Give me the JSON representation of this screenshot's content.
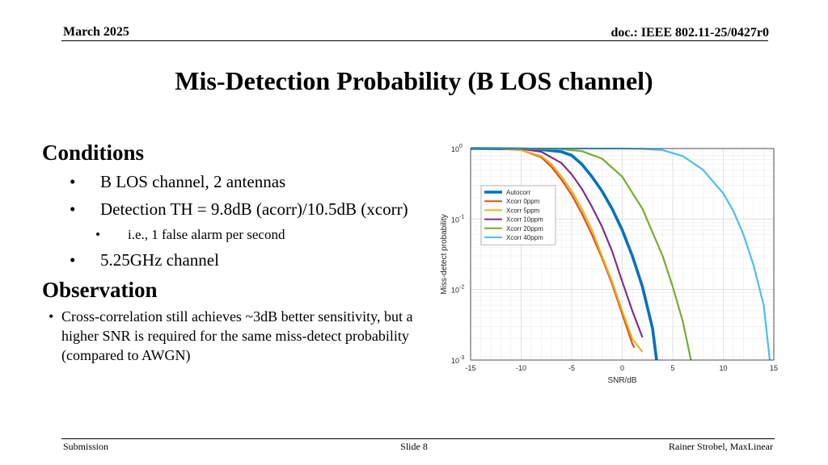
{
  "header": {
    "date": "March 2025",
    "doc": "doc.: IEEE 802.11-25/0427r0"
  },
  "title": "Mis-Detection Probability (B LOS channel)",
  "conditions": {
    "heading": "Conditions",
    "items": [
      {
        "text": "B LOS channel, 2 antennas",
        "sub": false
      },
      {
        "text": "Detection TH = 9.8dB (acorr)/10.5dB (xcorr)",
        "sub": false
      },
      {
        "text": "i.e., 1 false alarm per second",
        "sub": true
      },
      {
        "text": "5.25GHz channel",
        "sub": false
      }
    ]
  },
  "observation": {
    "heading": "Observation",
    "items": [
      "Cross-correlation still achieves ~3dB better sensitivity, but a higher SNR is required for the same miss-detect probability (compared to AWGN)"
    ]
  },
  "footer": {
    "left": "Submission",
    "center": "Slide 8",
    "right": "Rainer Strobel, MaxLinear"
  },
  "chart_data": {
    "type": "line",
    "xlabel": "SNR/dB",
    "ylabel": "Miss-detect probability",
    "xlim": [
      -15,
      15
    ],
    "ylim": [
      0.001,
      1
    ],
    "yscale": "log",
    "xticks": [
      "-15",
      "-10",
      "-5",
      "0",
      "5",
      "10",
      "15"
    ],
    "yticks": [
      {
        "value": 1,
        "base": "10",
        "exp": "0"
      },
      {
        "value": 0.1,
        "base": "10",
        "exp": "-1"
      },
      {
        "value": 0.01,
        "base": "10",
        "exp": "-2"
      },
      {
        "value": 0.001,
        "base": "10",
        "exp": "-3"
      }
    ],
    "grid": true,
    "legend_position": "upper-left",
    "series": [
      {
        "name": "Autocorr",
        "color": "#0072BD",
        "thick": true,
        "x": [
          -15,
          -10,
          -8,
          -6,
          -5,
          -4,
          -3,
          -2,
          -1,
          0,
          1,
          2,
          3,
          3.4
        ],
        "y": [
          1,
          0.99,
          0.97,
          0.9,
          0.8,
          0.6,
          0.4,
          0.25,
          0.14,
          0.07,
          0.03,
          0.011,
          0.0028,
          0.001
        ]
      },
      {
        "name": "Xcorr 0ppm",
        "color": "#D95319",
        "thick": false,
        "x": [
          -15,
          -12,
          -10,
          -8,
          -7,
          -6,
          -5,
          -4,
          -3,
          -2,
          -1,
          0,
          1,
          1.2
        ],
        "y": [
          1,
          0.99,
          0.95,
          0.75,
          0.55,
          0.36,
          0.22,
          0.12,
          0.06,
          0.028,
          0.012,
          0.0045,
          0.0017,
          0.0015
        ]
      },
      {
        "name": "Xcorr 5ppm",
        "color": "#EDB120",
        "thick": false,
        "x": [
          -15,
          -12,
          -10,
          -8,
          -7,
          -6,
          -5,
          -4,
          -3,
          -2,
          -1,
          0,
          1,
          2
        ],
        "y": [
          1,
          0.99,
          0.95,
          0.78,
          0.6,
          0.4,
          0.25,
          0.14,
          0.07,
          0.03,
          0.013,
          0.005,
          0.002,
          0.0013
        ]
      },
      {
        "name": "Xcorr 10ppm",
        "color": "#7E2F8E",
        "thick": false,
        "x": [
          -15,
          -10,
          -8,
          -6,
          -5,
          -4,
          -3,
          -2,
          -1,
          0,
          1,
          2
        ],
        "y": [
          1,
          0.99,
          0.9,
          0.62,
          0.43,
          0.27,
          0.15,
          0.078,
          0.035,
          0.013,
          0.005,
          0.0021
        ]
      },
      {
        "name": "Xcorr 20ppm",
        "color": "#77AC30",
        "thick": false,
        "x": [
          -15,
          -10,
          -6,
          -4,
          -2,
          0,
          2,
          4,
          5,
          6,
          6.8
        ],
        "y": [
          1,
          0.999,
          0.98,
          0.92,
          0.72,
          0.4,
          0.14,
          0.03,
          0.011,
          0.0035,
          0.001
        ]
      },
      {
        "name": "Xcorr 40ppm",
        "color": "#4DBEEE",
        "thick": false,
        "x": [
          -15,
          -5,
          0,
          2,
          4,
          6,
          8,
          10,
          11,
          12,
          13,
          14,
          14.6
        ],
        "y": [
          1,
          1,
          0.999,
          0.99,
          0.95,
          0.78,
          0.5,
          0.23,
          0.13,
          0.06,
          0.022,
          0.006,
          0.001
        ]
      }
    ]
  }
}
